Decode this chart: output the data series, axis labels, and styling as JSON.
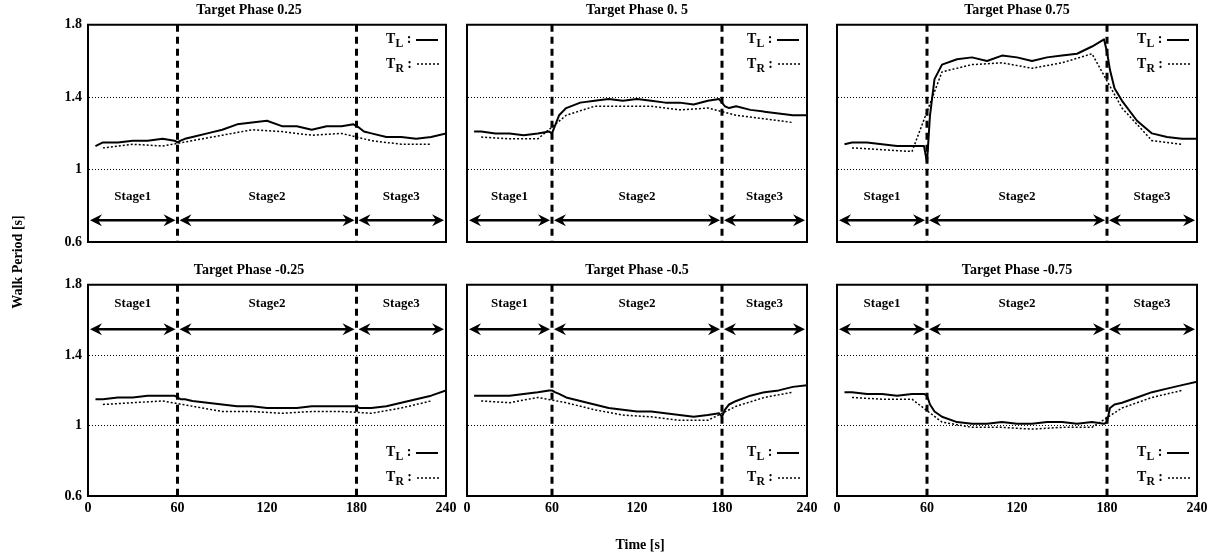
{
  "chart_data": [
    {
      "type": "line",
      "title": "Target Phase 0.25",
      "ylabel": "Walk Period [s]",
      "xlim": [
        0,
        240
      ],
      "xticks": [
        0,
        60,
        120,
        180,
        240
      ],
      "ylim": [
        0.6,
        1.8
      ],
      "yticks": [
        0.6,
        1,
        1.4,
        1.8
      ],
      "grid": "y",
      "legend": "top right",
      "tick_labels": "y",
      "x": [
        5,
        10,
        20,
        30,
        40,
        50,
        58,
        60,
        62,
        65,
        70,
        80,
        90,
        100,
        110,
        120,
        130,
        140,
        150,
        160,
        170,
        178,
        180,
        182,
        185,
        190,
        200,
        210,
        220,
        230,
        240
      ],
      "series": [
        {
          "name": "T$_{L}$ :",
          "color": "#000000",
          "line_style": "solid",
          "values": [
            1.13,
            1.15,
            1.15,
            1.16,
            1.16,
            1.17,
            1.16,
            1.15,
            1.16,
            1.17,
            1.18,
            1.2,
            1.22,
            1.25,
            1.26,
            1.27,
            1.24,
            1.24,
            1.22,
            1.24,
            1.24,
            1.25,
            1.24,
            1.23,
            1.21,
            1.2,
            1.18,
            1.18,
            1.17,
            1.18,
            1.2
          ]
        },
        {
          "name": "T$_{R}$ :",
          "color": "#000000",
          "line_style": "dotted",
          "x": [
            10,
            30,
            50,
            70,
            90,
            110,
            130,
            150,
            170,
            190,
            210,
            230
          ],
          "values": [
            1.12,
            1.14,
            1.13,
            1.16,
            1.19,
            1.22,
            1.21,
            1.19,
            1.2,
            1.16,
            1.14,
            1.14
          ]
        }
      ],
      "ref_lines": [
        {
          "axis": "x",
          "value": 60,
          "line_style": "dashed",
          "color": "#000000"
        },
        {
          "axis": "x",
          "value": 180,
          "line_style": "dashed",
          "color": "#000000"
        }
      ],
      "annotations": [
        "Stage1",
        "Stage2",
        "Stage3"
      ]
    },
    {
      "type": "line",
      "title": "Target Phase 0. 5",
      "xlim": [
        0,
        240
      ],
      "xticks": [
        0,
        60,
        120,
        180,
        240
      ],
      "ylim": [
        0.6,
        1.8
      ],
      "yticks": [
        0.6,
        1,
        1.4,
        1.8
      ],
      "grid": "y",
      "legend": "top right",
      "tick_labels": false,
      "x": [
        5,
        10,
        20,
        30,
        40,
        50,
        58,
        60,
        62,
        65,
        70,
        80,
        90,
        100,
        110,
        120,
        130,
        140,
        150,
        160,
        170,
        178,
        180,
        182,
        185,
        190,
        200,
        210,
        220,
        230,
        240
      ],
      "series": [
        {
          "name": "T$_{L}$ :",
          "color": "#000000",
          "line_style": "solid",
          "values": [
            1.21,
            1.21,
            1.2,
            1.2,
            1.19,
            1.2,
            1.21,
            1.2,
            1.24,
            1.3,
            1.34,
            1.37,
            1.38,
            1.39,
            1.38,
            1.39,
            1.38,
            1.37,
            1.37,
            1.36,
            1.38,
            1.39,
            1.37,
            1.35,
            1.34,
            1.35,
            1.33,
            1.32,
            1.31,
            1.3,
            1.3
          ]
        },
        {
          "name": "T$_{R}$ :",
          "color": "#000000",
          "line_style": "dotted",
          "x": [
            10,
            30,
            50,
            70,
            90,
            110,
            130,
            150,
            170,
            190,
            210,
            230
          ],
          "values": [
            1.18,
            1.17,
            1.17,
            1.3,
            1.35,
            1.35,
            1.35,
            1.33,
            1.34,
            1.3,
            1.28,
            1.26
          ]
        }
      ],
      "ref_lines": [
        {
          "axis": "x",
          "value": 60,
          "line_style": "dashed",
          "color": "#000000"
        },
        {
          "axis": "x",
          "value": 180,
          "line_style": "dashed",
          "color": "#000000"
        }
      ],
      "annotations": [
        "Stage1",
        "Stage2",
        "Stage3"
      ]
    },
    {
      "type": "line",
      "title": "Target Phase 0.75",
      "xlim": [
        0,
        240
      ],
      "xticks": [
        0,
        60,
        120,
        180,
        240
      ],
      "ylim": [
        0.6,
        1.8
      ],
      "yticks": [
        0.6,
        1,
        1.4,
        1.8
      ],
      "grid": "y",
      "legend": "top right",
      "tick_labels": false,
      "x": [
        5,
        10,
        20,
        30,
        40,
        50,
        58,
        60,
        62,
        65,
        70,
        80,
        90,
        100,
        110,
        120,
        130,
        140,
        150,
        160,
        170,
        178,
        180,
        182,
        185,
        190,
        200,
        210,
        220,
        230,
        240
      ],
      "series": [
        {
          "name": "T$_{L}$ :",
          "color": "#000000",
          "line_style": "solid",
          "values": [
            1.14,
            1.15,
            1.15,
            1.14,
            1.13,
            1.13,
            1.13,
            1.04,
            1.3,
            1.5,
            1.58,
            1.61,
            1.62,
            1.6,
            1.63,
            1.62,
            1.6,
            1.62,
            1.63,
            1.64,
            1.68,
            1.72,
            1.65,
            1.55,
            1.45,
            1.38,
            1.27,
            1.2,
            1.18,
            1.17,
            1.17
          ]
        },
        {
          "name": "T$_{R}$ :",
          "color": "#000000",
          "line_style": "dotted",
          "x": [
            10,
            30,
            50,
            70,
            90,
            110,
            130,
            150,
            170,
            190,
            210,
            230
          ],
          "values": [
            1.12,
            1.11,
            1.1,
            1.54,
            1.58,
            1.59,
            1.56,
            1.59,
            1.64,
            1.34,
            1.16,
            1.14
          ]
        }
      ],
      "ref_lines": [
        {
          "axis": "x",
          "value": 60,
          "line_style": "dashed",
          "color": "#000000"
        },
        {
          "axis": "x",
          "value": 180,
          "line_style": "dashed",
          "color": "#000000"
        }
      ],
      "annotations": [
        "Stage1",
        "Stage2",
        "Stage3"
      ]
    },
    {
      "type": "line",
      "title": "Target Phase -0.25",
      "xlim": [
        0,
        240
      ],
      "xticks": [
        0,
        60,
        120,
        180,
        240
      ],
      "ylim": [
        0.6,
        1.8
      ],
      "yticks": [
        0.6,
        1,
        1.4,
        1.8
      ],
      "grid": "y",
      "legend": "bottom right",
      "x": [
        5,
        10,
        20,
        30,
        40,
        50,
        58,
        60,
        62,
        65,
        70,
        80,
        90,
        100,
        110,
        120,
        130,
        140,
        150,
        160,
        170,
        178,
        180,
        182,
        185,
        190,
        200,
        210,
        220,
        230,
        240
      ],
      "series": [
        {
          "name": "T$_{L}$ :",
          "color": "#000000",
          "line_style": "solid",
          "values": [
            1.15,
            1.15,
            1.16,
            1.16,
            1.17,
            1.17,
            1.17,
            1.16,
            1.15,
            1.15,
            1.14,
            1.13,
            1.12,
            1.11,
            1.11,
            1.1,
            1.1,
            1.1,
            1.11,
            1.11,
            1.11,
            1.11,
            1.11,
            1.1,
            1.1,
            1.1,
            1.11,
            1.13,
            1.15,
            1.17,
            1.2
          ]
        },
        {
          "name": "T$_{R}$ :",
          "color": "#000000",
          "line_style": "dotted",
          "x": [
            10,
            30,
            50,
            70,
            90,
            110,
            130,
            150,
            170,
            190,
            210,
            230
          ],
          "values": [
            1.12,
            1.13,
            1.14,
            1.11,
            1.08,
            1.08,
            1.07,
            1.08,
            1.08,
            1.07,
            1.1,
            1.14
          ]
        }
      ],
      "ref_lines": [
        {
          "axis": "x",
          "value": 60,
          "line_style": "dashed",
          "color": "#000000"
        },
        {
          "axis": "x",
          "value": 180,
          "line_style": "dashed",
          "color": "#000000"
        }
      ],
      "annotations": [
        "Stage1",
        "Stage2",
        "Stage3"
      ]
    },
    {
      "type": "line",
      "title": "Target Phase -0.5",
      "xlabel": "Time [s]",
      "xlim": [
        0,
        240
      ],
      "xticks": [
        0,
        60,
        120,
        180,
        240
      ],
      "ylim": [
        0.6,
        1.8
      ],
      "yticks": [
        0.6,
        1,
        1.4,
        1.8
      ],
      "grid": "y",
      "legend": "bottom right",
      "tick_labels": "x",
      "x": [
        5,
        10,
        20,
        30,
        40,
        50,
        58,
        60,
        62,
        65,
        70,
        80,
        90,
        100,
        110,
        120,
        130,
        140,
        150,
        160,
        170,
        178,
        180,
        182,
        185,
        190,
        200,
        210,
        220,
        230,
        240
      ],
      "series": [
        {
          "name": "T$_{L}$ :",
          "color": "#000000",
          "line_style": "solid",
          "values": [
            1.17,
            1.17,
            1.17,
            1.17,
            1.18,
            1.19,
            1.2,
            1.2,
            1.19,
            1.18,
            1.16,
            1.14,
            1.12,
            1.1,
            1.09,
            1.08,
            1.08,
            1.07,
            1.06,
            1.05,
            1.06,
            1.07,
            1.05,
            1.09,
            1.12,
            1.14,
            1.17,
            1.19,
            1.2,
            1.22,
            1.23
          ]
        },
        {
          "name": "T$_{R}$ :",
          "color": "#000000",
          "line_style": "dotted",
          "x": [
            10,
            30,
            50,
            70,
            90,
            110,
            130,
            150,
            170,
            190,
            210,
            230
          ],
          "values": [
            1.14,
            1.13,
            1.16,
            1.13,
            1.09,
            1.06,
            1.05,
            1.03,
            1.03,
            1.11,
            1.16,
            1.19
          ]
        }
      ],
      "ref_lines": [
        {
          "axis": "x",
          "value": 60,
          "line_style": "dashed",
          "color": "#000000"
        },
        {
          "axis": "x",
          "value": 180,
          "line_style": "dashed",
          "color": "#000000"
        }
      ],
      "annotations": [
        "Stage1",
        "Stage2",
        "Stage3"
      ]
    },
    {
      "type": "line",
      "title": "Target Phase -0.75",
      "xlim": [
        0,
        240
      ],
      "xticks": [
        0,
        60,
        120,
        180,
        240
      ],
      "ylim": [
        0.6,
        1.8
      ],
      "yticks": [
        0.6,
        1,
        1.4,
        1.8
      ],
      "grid": "y",
      "legend": "bottom right",
      "tick_labels": "x",
      "x": [
        5,
        10,
        20,
        30,
        40,
        50,
        58,
        60,
        62,
        65,
        70,
        80,
        90,
        100,
        110,
        120,
        130,
        140,
        150,
        160,
        170,
        178,
        180,
        182,
        185,
        190,
        200,
        210,
        220,
        230,
        240
      ],
      "series": [
        {
          "name": "T$_{L}$ :",
          "color": "#000000",
          "line_style": "solid",
          "values": [
            1.19,
            1.19,
            1.18,
            1.18,
            1.17,
            1.18,
            1.18,
            1.17,
            1.12,
            1.08,
            1.05,
            1.02,
            1.01,
            1.01,
            1.02,
            1.01,
            1.01,
            1.02,
            1.02,
            1.01,
            1.02,
            1.01,
            1.02,
            1.1,
            1.12,
            1.13,
            1.16,
            1.19,
            1.21,
            1.23,
            1.25
          ]
        },
        {
          "name": "T$_{R}$ :",
          "color": "#000000",
          "line_style": "dotted",
          "x": [
            10,
            30,
            50,
            70,
            90,
            110,
            130,
            150,
            170,
            190,
            210,
            230
          ],
          "values": [
            1.16,
            1.15,
            1.15,
            1.02,
            0.99,
            0.99,
            0.98,
            0.99,
            0.99,
            1.1,
            1.16,
            1.2
          ]
        }
      ],
      "ref_lines": [
        {
          "axis": "x",
          "value": 60,
          "line_style": "dashed",
          "color": "#000000"
        },
        {
          "axis": "x",
          "value": 180,
          "line_style": "dashed",
          "color": "#000000"
        }
      ],
      "annotations": [
        "Stage1",
        "Stage2",
        "Stage3"
      ]
    }
  ]
}
